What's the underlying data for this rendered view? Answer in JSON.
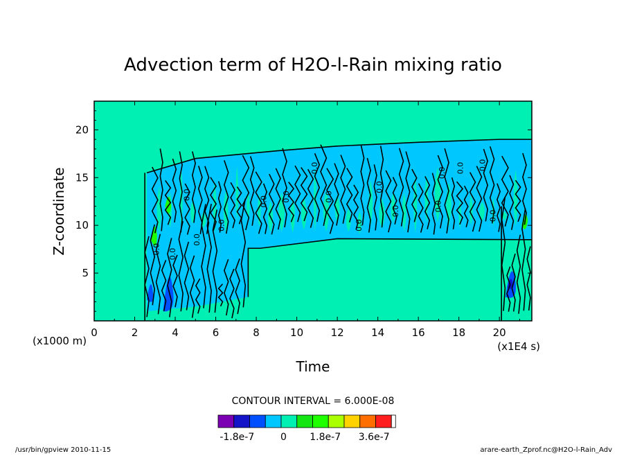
{
  "chart_data": {
    "type": "contour",
    "title": "Advection term of H2O-l-Rain mixing ratio",
    "xlabel": "Time",
    "ylabel": "Z-coordinate",
    "x_unit": "(x1E4 s)",
    "y_unit": "(x1000 m)",
    "xlim": [
      0,
      21.6
    ],
    "ylim": [
      0,
      23
    ],
    "x_ticks": [
      0,
      2,
      4,
      6,
      8,
      10,
      12,
      14,
      16,
      18,
      20
    ],
    "y_ticks": [
      5,
      10,
      15,
      20
    ],
    "contour_interval_label": "CONTOUR INTERVAL = 6.000E-08",
    "colorbar": {
      "colors": [
        "#7b00b4",
        "#1414c8",
        "#0050ff",
        "#00c8ff",
        "#00f0b4",
        "#14e614",
        "#1eff00",
        "#aaff00",
        "#ffd200",
        "#ff6e00",
        "#ff1e1e",
        "#ffffff"
      ],
      "tick_labels": [
        "-1.8e-7",
        "0",
        "1.8e-7",
        "3.6e-7"
      ]
    },
    "features": [
      {
        "region": "rain band",
        "x_range": [
          2.3,
          21.6
        ],
        "z_range": [
          8.5,
          19
        ],
        "dominant_level": "-6.0e-8 (light blue)",
        "zero_labels": "0.0"
      },
      {
        "region": "left convective column",
        "x_range": [
          2.3,
          8
        ],
        "z_range": [
          0,
          17
        ],
        "dominant_level": "-1.2e-7 to +6.0e-8",
        "note": "blue cores near z=3"
      },
      {
        "region": "right convective column",
        "x_range": [
          20,
          21.6
        ],
        "z_range": [
          0,
          19
        ],
        "dominant_level": "-1.2e-7 to +6.0e-8",
        "note": "blue cores near z=4"
      }
    ],
    "background_level": "0 (aquamarine)"
  },
  "footer": {
    "left": "/usr/bin/gpview  2010-11-15",
    "right": "arare-earth_Zprof.nc@H2O-l-Rain_Adv"
  }
}
